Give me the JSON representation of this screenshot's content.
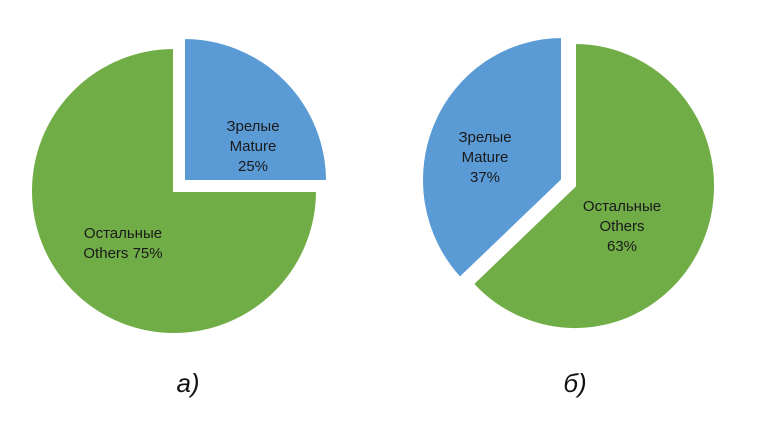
{
  "chart_data": [
    {
      "type": "pie",
      "caption": "а)",
      "colors": {
        "mature": "#5b9bd5",
        "others": "#70ad47"
      },
      "slices": [
        {
          "key": "mature",
          "labels": [
            "Зрелые",
            "Mature",
            "25%"
          ],
          "value": 25,
          "exploded": true
        },
        {
          "key": "others",
          "labels": [
            "Остальные",
            "Others 75%"
          ],
          "value": 75,
          "exploded": false
        }
      ]
    },
    {
      "type": "pie",
      "caption": "б)",
      "colors": {
        "mature": "#5b9bd5",
        "others": "#70ad47"
      },
      "slices": [
        {
          "key": "mature",
          "labels": [
            "Зрелые",
            "Mature",
            "37%"
          ],
          "value": 37,
          "exploded": true
        },
        {
          "key": "others",
          "labels": [
            "Остальные",
            "Others",
            "63%"
          ],
          "value": 63,
          "exploded": false
        }
      ]
    }
  ]
}
